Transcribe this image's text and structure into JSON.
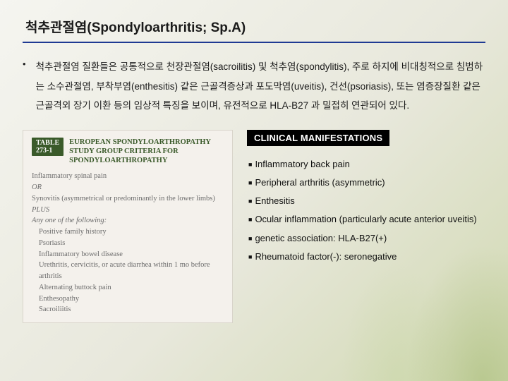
{
  "title": "척추관절염(Spondyloarthritis; Sp.A)",
  "description": "척추관절염 질환들은 공통적으로 천장관절염(sacroilitis) 및 척추염(spondylitis), 주로 하지에 비대칭적으로 침범하는 소수관절염, 부착부염(enthesitis) 같은 근골격증상과 포도막염(uveitis), 건선(psoriasis), 또는 염증장질환 같은 근골격외 장기 이환 등의 임상적 특징을 보이며, 유전적으로 HLA-B27 과 밀접히 연관되어 있다.",
  "table": {
    "number": "TABLE 273-1",
    "title": "EUROPEAN SPONDYLOARTHROPATHY STUDY GROUP CRITERIA FOR SPONDYLOARTHROPATHY",
    "line1": "Inflammatory spinal pain",
    "line2": "OR",
    "line3": "Synovitis (asymmetrical or predominantly in the lower limbs)",
    "line4": "PLUS",
    "line5": "Any one of the following:",
    "line6": "Positive family history",
    "line7": "Psoriasis",
    "line8": "Inflammatory bowel disease",
    "line9": "Urethritis, cervicitis, or acute diarrhea within 1 mo before arthritis",
    "line10": "Alternating buttock pain",
    "line11": "Enthesopathy",
    "line12": "Sacroiliitis"
  },
  "clinical": {
    "banner": "CLINICAL MANIFESTATIONS",
    "items": [
      "Inflammatory back pain",
      "Peripheral arthritis (asymmetric)",
      "Enthesitis",
      "Ocular inflammation (particularly acute anterior uveitis)",
      "genetic association: HLA-B27(+)",
      "Rheumatoid factor(-): seronegative"
    ]
  }
}
